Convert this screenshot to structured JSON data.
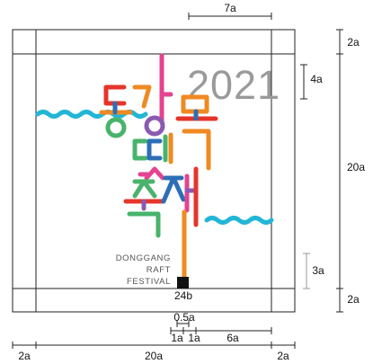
{
  "logo": {
    "year": "2021",
    "english_lines": [
      "DONGGANG",
      "RAFT",
      "FESTIVAL"
    ],
    "korean_glyphs": [
      "동",
      "강",
      "뗏",
      "목",
      "축",
      "제"
    ]
  },
  "dimensions": {
    "top": "7a",
    "right_top": "2a",
    "right_year": "4a",
    "right_main": "20a",
    "right_eng": "3a",
    "right_bottom": "2a",
    "anchor": "24b",
    "detail_mid": "0.5a",
    "detail_1a_left": "1a",
    "detail_1a_right": "1a",
    "detail_6a": "6a",
    "bottom_left": "2a",
    "bottom_mid": "20a",
    "bottom_right": "2a"
  },
  "colors": {
    "wave": "#22b6d6",
    "red": "#e5352b",
    "pink": "#e4438f",
    "purple": "#8a5ab0",
    "green": "#49b36b",
    "orange": "#ef8a22",
    "blue": "#2c6fb7",
    "yellow": "#f2b711",
    "anchor": "#111111"
  }
}
